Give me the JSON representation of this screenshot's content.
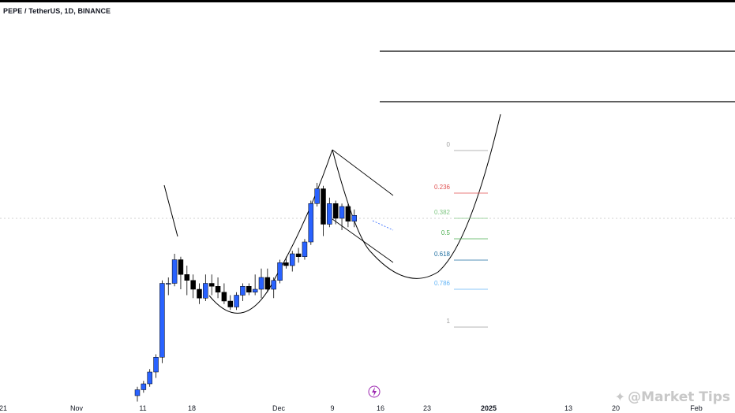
{
  "chart_data": {
    "type": "candlestick",
    "title": "PEPE / TetherUS, 1D, BINANCE",
    "xaxis_ticks": [
      "21",
      "Nov",
      "11",
      "18",
      "Dec",
      "9",
      "16",
      "23",
      "2025",
      "13",
      "20",
      "Feb"
    ],
    "fib_levels": [
      {
        "label": "0",
        "color": "#9e9e9e"
      },
      {
        "label": "0.236",
        "color": "#e05050"
      },
      {
        "label": "0.382",
        "color": "#81c784"
      },
      {
        "label": "0.5",
        "color": "#4caf50"
      },
      {
        "label": "0.618",
        "color": "#1e6ea0"
      },
      {
        "label": "0.786",
        "color": "#64b5f6"
      },
      {
        "label": "1",
        "color": "#9e9e9e"
      }
    ],
    "colors": {
      "up": "#2962ff",
      "down": "#000000"
    },
    "candles": [
      {
        "o": 0.0,
        "h": 1.5,
        "l": -1.0,
        "c": 1.0
      },
      {
        "o": 1.0,
        "h": 2.5,
        "l": 0.5,
        "c": 2.0
      },
      {
        "o": 2.0,
        "h": 4.5,
        "l": 1.5,
        "c": 4.0
      },
      {
        "o": 4.0,
        "h": 7.0,
        "l": 3.0,
        "c": 6.5
      },
      {
        "o": 6.5,
        "h": 19.5,
        "l": 5.5,
        "c": 19.0
      },
      {
        "o": 19.0,
        "h": 20.0,
        "l": 17.0,
        "c": 19.0
      },
      {
        "o": 19.0,
        "h": 24.0,
        "l": 18.5,
        "c": 23.0
      },
      {
        "o": 23.0,
        "h": 23.5,
        "l": 18.0,
        "c": 20.5
      },
      {
        "o": 20.5,
        "h": 22.0,
        "l": 17.0,
        "c": 19.5
      },
      {
        "o": 19.5,
        "h": 20.5,
        "l": 16.5,
        "c": 18.0
      },
      {
        "o": 18.0,
        "h": 19.0,
        "l": 15.5,
        "c": 16.5
      },
      {
        "o": 16.5,
        "h": 20.5,
        "l": 16.0,
        "c": 19.0
      },
      {
        "o": 19.0,
        "h": 20.5,
        "l": 17.0,
        "c": 18.5
      },
      {
        "o": 18.5,
        "h": 20.0,
        "l": 16.5,
        "c": 17.5
      },
      {
        "o": 17.5,
        "h": 19.0,
        "l": 15.5,
        "c": 16.0
      },
      {
        "o": 16.0,
        "h": 17.0,
        "l": 14.5,
        "c": 15.0
      },
      {
        "o": 15.0,
        "h": 17.5,
        "l": 14.5,
        "c": 17.0
      },
      {
        "o": 17.0,
        "h": 19.0,
        "l": 16.0,
        "c": 18.5
      },
      {
        "o": 18.5,
        "h": 19.0,
        "l": 17.0,
        "c": 17.5
      },
      {
        "o": 17.5,
        "h": 20.5,
        "l": 17.0,
        "c": 18.0
      },
      {
        "o": 18.0,
        "h": 21.5,
        "l": 16.5,
        "c": 20.0
      },
      {
        "o": 20.0,
        "h": 21.5,
        "l": 17.5,
        "c": 18.0
      },
      {
        "o": 18.0,
        "h": 20.0,
        "l": 16.5,
        "c": 19.5
      },
      {
        "o": 19.5,
        "h": 23.0,
        "l": 19.0,
        "c": 22.5
      },
      {
        "o": 22.5,
        "h": 23.5,
        "l": 21.5,
        "c": 22.0
      },
      {
        "o": 22.0,
        "h": 24.5,
        "l": 21.0,
        "c": 24.0
      },
      {
        "o": 24.0,
        "h": 25.0,
        "l": 22.5,
        "c": 23.5
      },
      {
        "o": 23.5,
        "h": 26.5,
        "l": 23.0,
        "c": 26.0
      },
      {
        "o": 26.0,
        "h": 33.0,
        "l": 25.5,
        "c": 32.5
      },
      {
        "o": 32.5,
        "h": 36.0,
        "l": 32.0,
        "c": 35.0
      },
      {
        "o": 35.0,
        "h": 35.5,
        "l": 27.0,
        "c": 29.0
      },
      {
        "o": 29.0,
        "h": 33.5,
        "l": 28.5,
        "c": 32.5
      },
      {
        "o": 32.5,
        "h": 33.0,
        "l": 29.0,
        "c": 30.0
      },
      {
        "o": 30.0,
        "h": 32.5,
        "l": 28.0,
        "c": 32.0
      },
      {
        "o": 32.0,
        "h": 32.5,
        "l": 28.5,
        "c": 29.5
      },
      {
        "o": 29.5,
        "h": 31.5,
        "l": 28.5,
        "c": 30.5
      }
    ],
    "grid": false,
    "legend": "none"
  },
  "watermark": {
    "text": "@Market Tips",
    "icon": "cat-logo-icon"
  },
  "toolbar": {
    "lightning_icon": "lightning-icon"
  }
}
